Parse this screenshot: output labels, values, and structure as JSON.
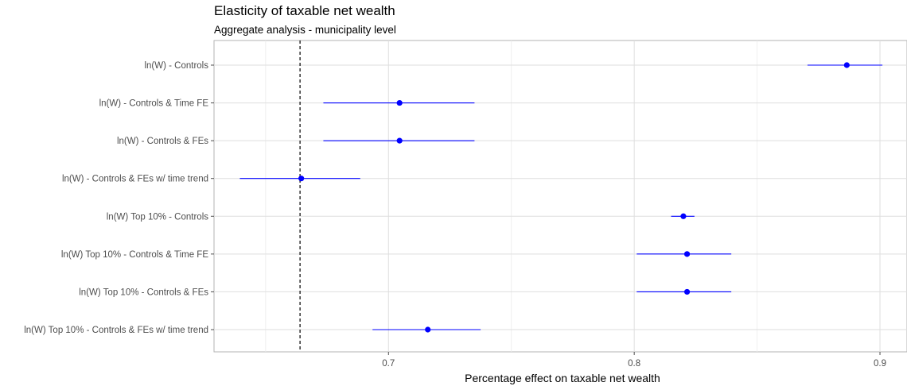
{
  "chart_data": {
    "type": "forest",
    "title": "Elasticity of taxable net wealth",
    "subtitle": "Aggregate analysis - municipality level",
    "xlabel": "Percentage effect on taxable net wealth",
    "ylabel": "",
    "xlim": [
      0.629,
      0.911
    ],
    "x_ticks": [
      0.7,
      0.8,
      0.9
    ],
    "x_tick_labels": [
      "0.7",
      "0.8",
      "0.9"
    ],
    "reference_line": 0.664,
    "grid": true,
    "categories": [
      "ln(W) - Controls",
      "ln(W) - Controls & Time FE",
      "ln(W) - Controls & FEs",
      "ln(W) - Controls & FEs w/ time trend",
      "ln(W) Top 10% - Controls",
      "ln(W) Top 10% - Controls & Time FE",
      "ln(W) Top 10% - Controls & FEs",
      "ln(W) Top 10% - Controls & FEs w/ time trend"
    ],
    "estimates": [
      0.8865,
      0.7045,
      0.7045,
      0.6645,
      0.82,
      0.8215,
      0.8215,
      0.716
    ],
    "lower": [
      0.8705,
      0.6735,
      0.6735,
      0.6395,
      0.815,
      0.801,
      0.801,
      0.6935
    ],
    "upper": [
      0.901,
      0.735,
      0.735,
      0.6885,
      0.8245,
      0.8395,
      0.8395,
      0.7375
    ],
    "point_color": "#0000ff",
    "line_color": "#0000ff"
  }
}
